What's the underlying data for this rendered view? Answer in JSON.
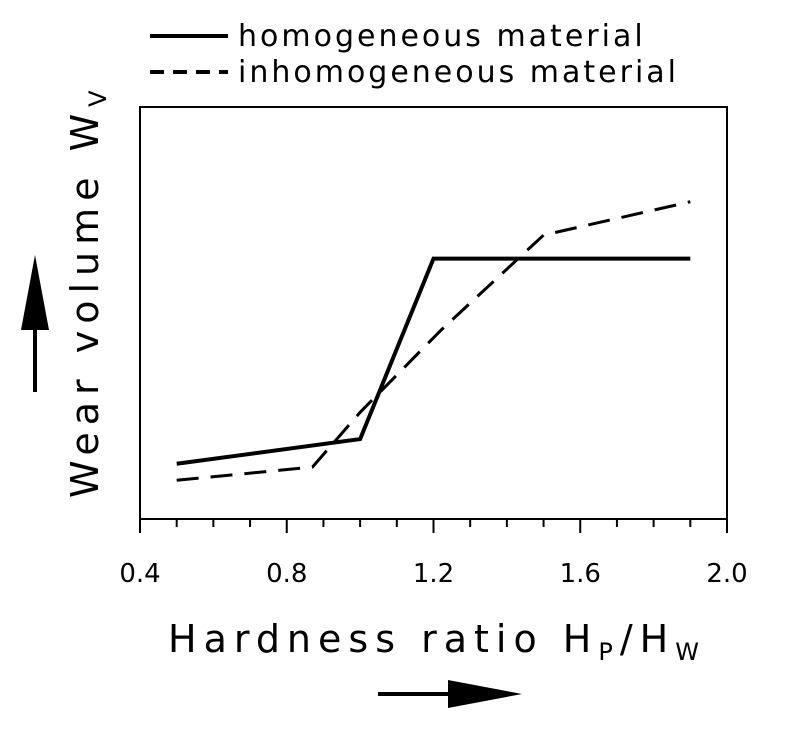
{
  "chart_data": {
    "type": "line",
    "title": "",
    "xlabel": "Hardness ratio H",
    "xlabel_sub1": "P",
    "xlabel_sep": "/H",
    "xlabel_sub2": "W",
    "ylabel": "Wear volume W",
    "ylabel_sub": "V",
    "xlim": [
      0.4,
      2.0
    ],
    "ylim": [
      0,
      1
    ],
    "xticks": [
      0.4,
      0.8,
      1.2,
      1.6,
      2.0
    ],
    "xtick_labels": [
      "0.4",
      "0.8",
      "1.2",
      "1.6",
      "2.0"
    ],
    "y_tick_labels_shown": false,
    "grid": false,
    "legend_position": "top",
    "series": [
      {
        "name": "homogeneous material",
        "style": "solid",
        "x": [
          0.5,
          1.0,
          1.2,
          1.9
        ],
        "y": [
          0.134,
          0.194,
          0.632,
          0.632
        ]
      },
      {
        "name": "inhomogeneous material",
        "style": "dashed",
        "x": [
          0.5,
          0.87,
          1.0,
          1.22,
          1.5,
          1.9
        ],
        "y": [
          0.094,
          0.126,
          0.259,
          0.458,
          0.689,
          0.77
        ]
      }
    ]
  },
  "colors": {
    "line": "#000000",
    "background": "#ffffff"
  }
}
